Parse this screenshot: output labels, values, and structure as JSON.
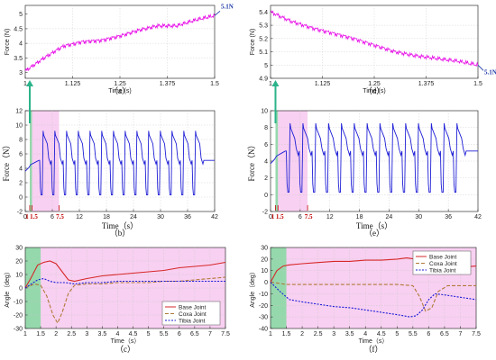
{
  "chart_data": [
    {
      "id": "a",
      "type": "line",
      "caption": "（a）",
      "xlabel": "Time (s)",
      "ylabel": "Force (N)",
      "xlim": [
        1,
        1.5
      ],
      "ylim": [
        2.8,
        5.3
      ],
      "xticks": [
        "1",
        "1.125",
        "1.25",
        "1.375",
        "1.5"
      ],
      "yticks": [
        "3",
        "3.5",
        "4",
        "4.5",
        "5"
      ],
      "grid": true,
      "color": "#e600e6",
      "annotation": "5.1N",
      "series": [
        {
          "x": [
            1.0,
            1.05,
            1.1,
            1.15,
            1.2,
            1.25,
            1.3,
            1.35,
            1.4,
            1.45,
            1.5
          ],
          "values": [
            3.05,
            3.5,
            3.9,
            4.05,
            4.1,
            4.25,
            4.45,
            4.6,
            4.6,
            4.8,
            4.95
          ]
        }
      ]
    },
    {
      "id": "d",
      "type": "line",
      "caption": "（d）",
      "xlabel": "Time (s)",
      "ylabel": "Force (N)",
      "xlim": [
        1,
        1.5
      ],
      "ylim": [
        4.9,
        5.45
      ],
      "xticks": [
        "1",
        "1.125",
        "1.25",
        "1.375",
        "1.5"
      ],
      "yticks": [
        "4.9",
        "5",
        "5.1",
        "5.2",
        "5.3",
        "5.4"
      ],
      "grid": true,
      "color": "#e600e6",
      "annotation": "5.1N",
      "series": [
        {
          "x": [
            1.0,
            1.05,
            1.1,
            1.15,
            1.2,
            1.25,
            1.3,
            1.35,
            1.4,
            1.45,
            1.5
          ],
          "values": [
            5.4,
            5.33,
            5.28,
            5.24,
            5.2,
            5.15,
            5.1,
            5.07,
            5.05,
            5.03,
            5.0
          ]
        }
      ]
    },
    {
      "id": "b",
      "type": "line",
      "caption": "（b）",
      "xlabel": "Time（s）",
      "ylabel": "Force（N）",
      "xlim": [
        0,
        42
      ],
      "ylim": [
        -2,
        12
      ],
      "xticks": [
        "0",
        "6",
        "12",
        "18",
        "24",
        "30",
        "36",
        "42"
      ],
      "yticks": [
        "-2",
        "0",
        "2",
        "4",
        "6",
        "8",
        "10",
        "12"
      ],
      "grid": true,
      "color": "#1f1fd6",
      "markers": [
        "1",
        "1.5",
        "7.5"
      ],
      "green_band": [
        1,
        1.5
      ],
      "pink_band": [
        1.5,
        7.5
      ],
      "cycle": {
        "start": 3.2,
        "period": 2.6,
        "count": 14,
        "high": 9.2,
        "low": 0.3,
        "rest": 5.1
      }
    },
    {
      "id": "e",
      "type": "line",
      "caption": "（e）",
      "xlabel": "Time（s）",
      "ylabel": "Force（N）",
      "xlim": [
        0,
        42
      ],
      "ylim": [
        -2,
        10
      ],
      "xticks": [
        "0",
        "6",
        "12",
        "18",
        "24",
        "30",
        "36",
        "42"
      ],
      "yticks": [
        "-2",
        "0",
        "2",
        "4",
        "6",
        "8",
        "10"
      ],
      "grid": true,
      "color": "#1f1fd6",
      "markers": [
        "1",
        "1.5",
        "7.5"
      ],
      "green_band": [
        1,
        1.5
      ],
      "pink_band": [
        1.5,
        7.5
      ],
      "cycle": {
        "start": 3.2,
        "period": 2.6,
        "count": 14,
        "high": 8.5,
        "low": 0.3,
        "rest": 5.2
      }
    },
    {
      "id": "c",
      "type": "line",
      "caption": "（c）",
      "xlabel": "Time（s）",
      "ylabel": "Angle（deg）",
      "xlim": [
        1,
        7.5
      ],
      "ylim": [
        -30,
        30
      ],
      "xticks": [
        "1",
        "1.5",
        "2",
        "2.5",
        "3",
        "3.5",
        "4",
        "4.5",
        "5",
        "5.5",
        "6",
        "6.5",
        "7",
        "7.5"
      ],
      "yticks": [
        "-30",
        "-20",
        "-10",
        "0",
        "10",
        "20",
        "30"
      ],
      "grid": true,
      "green_band": [
        1,
        1.5
      ],
      "pink_band": [
        1.5,
        7.5
      ],
      "legend_position": "bottom-right",
      "series": [
        {
          "name": "Base Joint",
          "color": "#d62728",
          "dash": "",
          "x": [
            1,
            1.2,
            1.4,
            1.6,
            1.8,
            2.0,
            2.2,
            2.4,
            2.6,
            3.0,
            3.5,
            4.0,
            4.5,
            5.0,
            5.5,
            6.0,
            6.5,
            7.0,
            7.5
          ],
          "values": [
            0,
            8,
            17,
            19,
            20,
            18,
            12,
            6,
            5,
            7,
            9,
            10,
            11,
            12,
            13,
            15,
            16,
            17,
            19
          ]
        },
        {
          "name": "Coxa Joint",
          "color": "#b07a3a",
          "dash": "4,2",
          "x": [
            1,
            1.3,
            1.5,
            1.7,
            1.9,
            2.05,
            2.2,
            2.4,
            2.6,
            3.0,
            3.5,
            4.0,
            4.5,
            5.0,
            5.5,
            6.0,
            6.5,
            7.0,
            7.5
          ],
          "values": [
            0,
            3,
            2,
            -6,
            -20,
            -26,
            -18,
            -4,
            2,
            3,
            3,
            4,
            4,
            4,
            5,
            5,
            6,
            7,
            8
          ]
        },
        {
          "name": "Tibia Joint",
          "color": "#1a1ad6",
          "dash": "2,1.5",
          "x": [
            1,
            1.2,
            1.4,
            1.6,
            1.8,
            2.0,
            2.3,
            2.6,
            3.0,
            3.5,
            4.0,
            4.5,
            5.0,
            5.5,
            6.0,
            6.5,
            7.0,
            7.5
          ],
          "values": [
            0,
            3,
            6,
            7,
            5,
            4,
            4,
            3,
            4,
            4,
            5,
            5,
            5,
            5,
            5,
            5,
            5,
            5
          ]
        }
      ]
    },
    {
      "id": "f",
      "type": "line",
      "caption": "（f）",
      "xlabel": "Time（s）",
      "ylabel": "Angle（deg）",
      "xlim": [
        1,
        7.5
      ],
      "ylim": [
        -40,
        30
      ],
      "xticks": [
        "1",
        "1.5",
        "2",
        "2.5",
        "3",
        "3.5",
        "4",
        "4.5",
        "5",
        "5.5",
        "6",
        "6.5",
        "7",
        "7.5"
      ],
      "yticks": [
        "-40",
        "-30",
        "-20",
        "-10",
        "0",
        "10",
        "20",
        "30"
      ],
      "grid": true,
      "green_band": [
        1,
        1.5
      ],
      "pink_band": [
        1.5,
        7.5
      ],
      "legend_position": "top-right",
      "series": [
        {
          "name": "Base Joint",
          "color": "#d62728",
          "dash": "",
          "x": [
            1,
            1.2,
            1.4,
            1.6,
            2.0,
            2.5,
            3.0,
            3.5,
            4.0,
            4.5,
            5.0,
            5.3,
            5.6,
            5.8,
            6.0,
            6.5,
            7.0,
            7.5
          ],
          "values": [
            0,
            10,
            14,
            15,
            16,
            17,
            18,
            18,
            19,
            19,
            20,
            21,
            20,
            16,
            12,
            12,
            13,
            14
          ]
        },
        {
          "name": "Coxa Joint",
          "color": "#b07a3a",
          "dash": "4,2",
          "x": [
            1,
            1.3,
            1.5,
            2.0,
            2.5,
            3.0,
            3.5,
            4.0,
            4.5,
            5.0,
            5.5,
            5.7,
            5.9,
            6.1,
            6.3,
            6.6,
            7.0,
            7.5
          ],
          "values": [
            0,
            -1,
            -2,
            -2,
            -2,
            -2,
            -2,
            -2,
            -2,
            -2,
            -3,
            -12,
            -25,
            -22,
            -8,
            -3,
            -3,
            -3
          ]
        },
        {
          "name": "Tibia Joint",
          "color": "#1a1ad6",
          "dash": "2,1.5",
          "x": [
            1,
            1.3,
            1.6,
            2.0,
            2.5,
            3.0,
            3.5,
            4.0,
            4.5,
            5.0,
            5.4,
            5.6,
            5.8,
            6.0,
            6.2,
            6.5,
            7.0,
            7.5
          ],
          "values": [
            0,
            -8,
            -15,
            -17,
            -19,
            -21,
            -22,
            -24,
            -26,
            -28,
            -30,
            -29,
            -24,
            -15,
            -10,
            -11,
            -13,
            -15
          ]
        }
      ]
    }
  ]
}
